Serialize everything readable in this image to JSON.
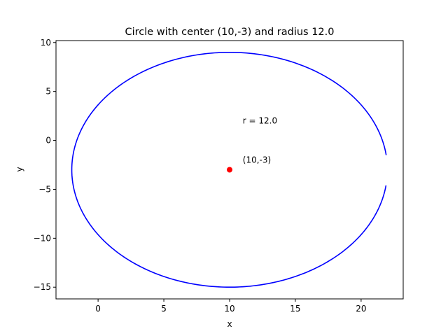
{
  "chart_data": {
    "type": "line",
    "title": "Circle with center (10,-3) and radius 12.0",
    "xlabel": "x",
    "ylabel": "y",
    "xlim": [
      -3.2,
      23.2
    ],
    "ylim": [
      -16.2,
      10.2
    ],
    "xticks": [
      0,
      5,
      10,
      15,
      20
    ],
    "yticks": [
      10,
      5,
      0,
      -5,
      -10,
      -15
    ],
    "xtick_labels": [
      "0",
      "5",
      "10",
      "15",
      "20"
    ],
    "ytick_labels": [
      "10",
      "5",
      "0",
      "−5",
      "−10",
      "−15"
    ],
    "grid": false,
    "legend": "none",
    "series": [
      {
        "kind": "circle",
        "center": [
          10,
          -3
        ],
        "radius": 12.0,
        "gap_on_right": true,
        "right_gap_y_range": [
          -4.6,
          -1.5
        ],
        "color": "#0000ff"
      },
      {
        "kind": "point",
        "x": 10,
        "y": -3,
        "color": "#ff0000"
      }
    ],
    "annotations": [
      {
        "text": "r = 12.0",
        "x": 11,
        "y": 2
      },
      {
        "text": "(10,-3)",
        "x": 11,
        "y": -2
      }
    ]
  }
}
